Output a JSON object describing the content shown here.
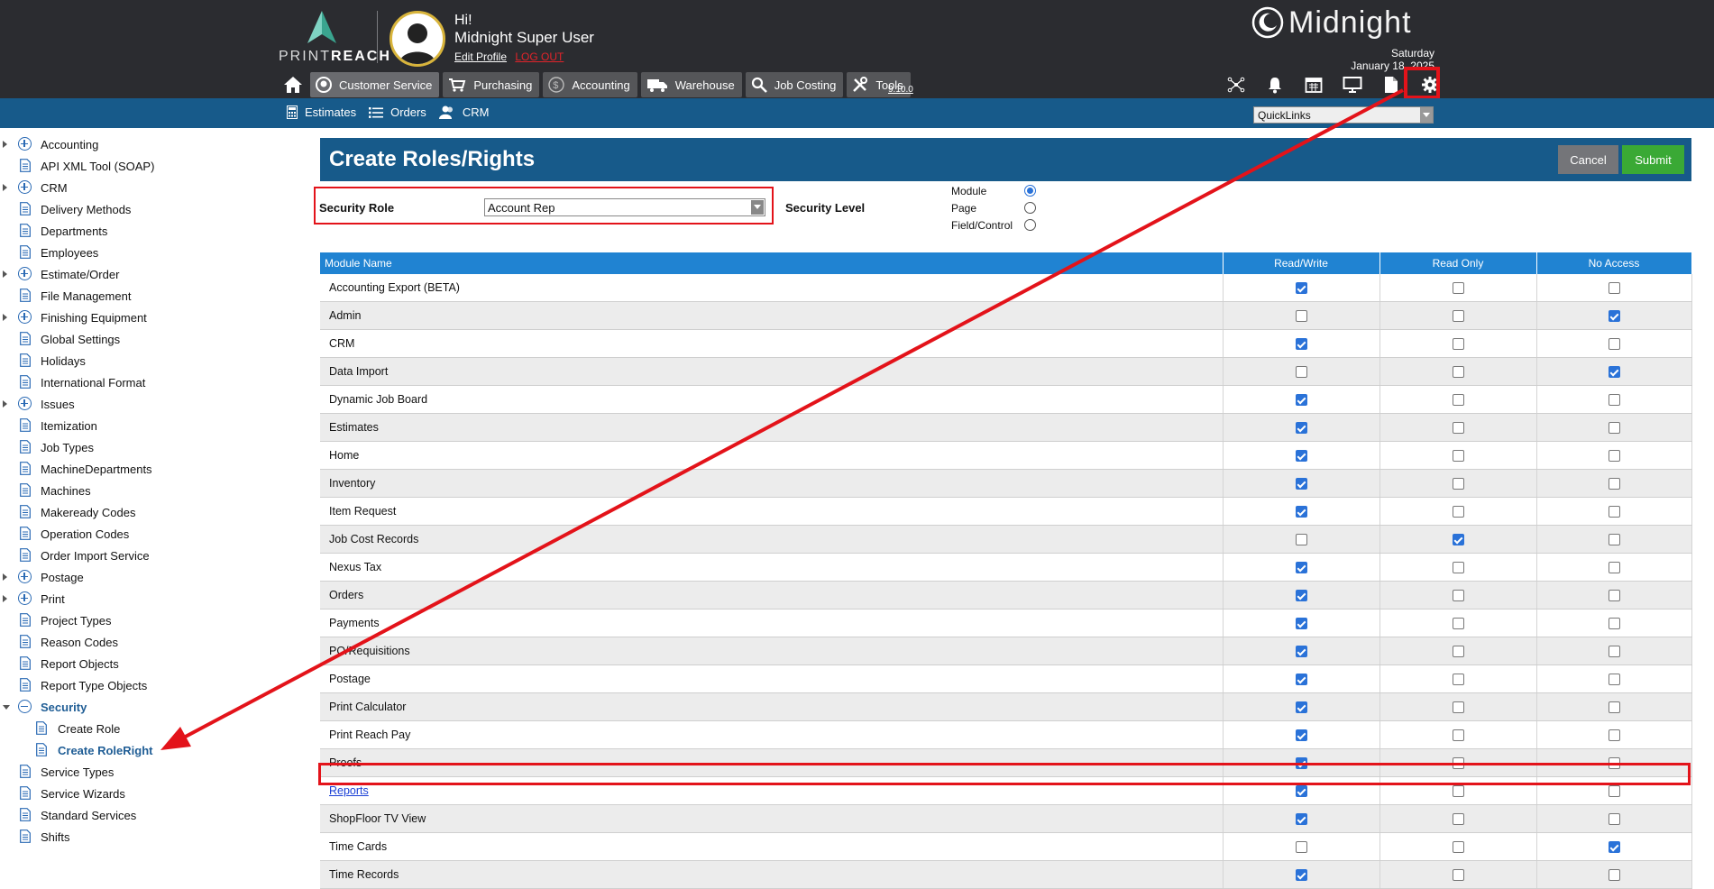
{
  "header": {
    "brand_light": "PRINT",
    "brand_bold": "REACH",
    "greeting": "Hi!",
    "user_name": "Midnight Super User",
    "edit_profile": "Edit Profile",
    "logout": "LOG OUT",
    "product_name": "Midnight",
    "day": "Saturday",
    "date": "January 18, 2025",
    "version": "9.10.0",
    "nav": [
      {
        "label": "Customer Service",
        "icon": "customer-service-icon"
      },
      {
        "label": "Purchasing",
        "icon": "cart-icon"
      },
      {
        "label": "Accounting",
        "icon": "dollar-icon"
      },
      {
        "label": "Warehouse",
        "icon": "truck-icon"
      },
      {
        "label": "Job Costing",
        "icon": "magnifier-icon"
      },
      {
        "label": "Tools",
        "icon": "tools-icon"
      }
    ],
    "right_tools": [
      "network-icon",
      "bell-icon",
      "calendar-icon",
      "monitor-icon",
      "document-icon",
      "gear-icon"
    ]
  },
  "subnav": {
    "links": [
      "Estimates",
      "Orders",
      "CRM"
    ],
    "quicklinks_value": "QuickLinks"
  },
  "sidebar": {
    "items": [
      {
        "label": "Accounting",
        "type": "folder"
      },
      {
        "label": "API XML Tool (SOAP)",
        "type": "doc"
      },
      {
        "label": "CRM",
        "type": "folder"
      },
      {
        "label": "Delivery Methods",
        "type": "doc"
      },
      {
        "label": "Departments",
        "type": "doc"
      },
      {
        "label": "Employees",
        "type": "doc"
      },
      {
        "label": "Estimate/Order",
        "type": "folder"
      },
      {
        "label": "File Management",
        "type": "doc"
      },
      {
        "label": "Finishing Equipment",
        "type": "folder"
      },
      {
        "label": "Global Settings",
        "type": "doc"
      },
      {
        "label": "Holidays",
        "type": "doc"
      },
      {
        "label": "International Format",
        "type": "doc"
      },
      {
        "label": "Issues",
        "type": "folder"
      },
      {
        "label": "Itemization",
        "type": "doc"
      },
      {
        "label": "Job Types",
        "type": "doc"
      },
      {
        "label": "MachineDepartments",
        "type": "doc"
      },
      {
        "label": "Machines",
        "type": "doc"
      },
      {
        "label": "Makeready Codes",
        "type": "doc"
      },
      {
        "label": "Operation Codes",
        "type": "doc"
      },
      {
        "label": "Order Import Service",
        "type": "doc"
      },
      {
        "label": "Postage",
        "type": "folder"
      },
      {
        "label": "Print",
        "type": "folder"
      },
      {
        "label": "Project Types",
        "type": "doc"
      },
      {
        "label": "Reason Codes",
        "type": "doc"
      },
      {
        "label": "Report Objects",
        "type": "doc"
      },
      {
        "label": "Report Type Objects",
        "type": "doc"
      },
      {
        "label": "Security",
        "type": "open"
      },
      {
        "label": "Create Role",
        "type": "child"
      },
      {
        "label": "Create RoleRight",
        "type": "child-current"
      },
      {
        "label": "Service Types",
        "type": "doc"
      },
      {
        "label": "Service Wizards",
        "type": "doc"
      },
      {
        "label": "Standard Services",
        "type": "doc"
      },
      {
        "label": "Shifts",
        "type": "doc"
      }
    ]
  },
  "main": {
    "title": "Create Roles/Rights",
    "cancel_label": "Cancel",
    "submit_label": "Submit",
    "security_role_label": "Security Role",
    "security_role_value": "Account Rep",
    "security_level_label": "Security Level",
    "levels": [
      {
        "label": "Module",
        "selected": true
      },
      {
        "label": "Page",
        "selected": false
      },
      {
        "label": "Field/Control",
        "selected": false
      }
    ],
    "columns": [
      "Module Name",
      "Read/Write",
      "Read Only",
      "No Access"
    ],
    "rows": [
      {
        "name": "Accounting Export (BETA)",
        "rw": true,
        "ro": false,
        "na": false
      },
      {
        "name": "Admin",
        "rw": false,
        "ro": false,
        "na": true
      },
      {
        "name": "CRM",
        "rw": true,
        "ro": false,
        "na": false
      },
      {
        "name": "Data Import",
        "rw": false,
        "ro": false,
        "na": true
      },
      {
        "name": "Dynamic Job Board",
        "rw": true,
        "ro": false,
        "na": false
      },
      {
        "name": "Estimates",
        "rw": true,
        "ro": false,
        "na": false
      },
      {
        "name": "Home",
        "rw": true,
        "ro": false,
        "na": false
      },
      {
        "name": "Inventory",
        "rw": true,
        "ro": false,
        "na": false
      },
      {
        "name": "Item Request",
        "rw": true,
        "ro": false,
        "na": false
      },
      {
        "name": "Job Cost Records",
        "rw": false,
        "ro": true,
        "na": false
      },
      {
        "name": "Nexus Tax",
        "rw": true,
        "ro": false,
        "na": false
      },
      {
        "name": "Orders",
        "rw": true,
        "ro": false,
        "na": false
      },
      {
        "name": "Payments",
        "rw": true,
        "ro": false,
        "na": false
      },
      {
        "name": "PO/Requisitions",
        "rw": true,
        "ro": false,
        "na": false
      },
      {
        "name": "Postage",
        "rw": true,
        "ro": false,
        "na": false
      },
      {
        "name": "Print Calculator",
        "rw": true,
        "ro": false,
        "na": false
      },
      {
        "name": "Print Reach Pay",
        "rw": true,
        "ro": false,
        "na": false
      },
      {
        "name": "Proofs",
        "rw": true,
        "ro": false,
        "na": false
      },
      {
        "name": "Reports",
        "rw": true,
        "ro": false,
        "na": false,
        "link": true
      },
      {
        "name": "ShopFloor TV View",
        "rw": true,
        "ro": false,
        "na": false
      },
      {
        "name": "Time Cards",
        "rw": false,
        "ro": false,
        "na": true
      },
      {
        "name": "Time Records",
        "rw": true,
        "ro": false,
        "na": false
      }
    ]
  },
  "annotation_color": "#e3131a"
}
